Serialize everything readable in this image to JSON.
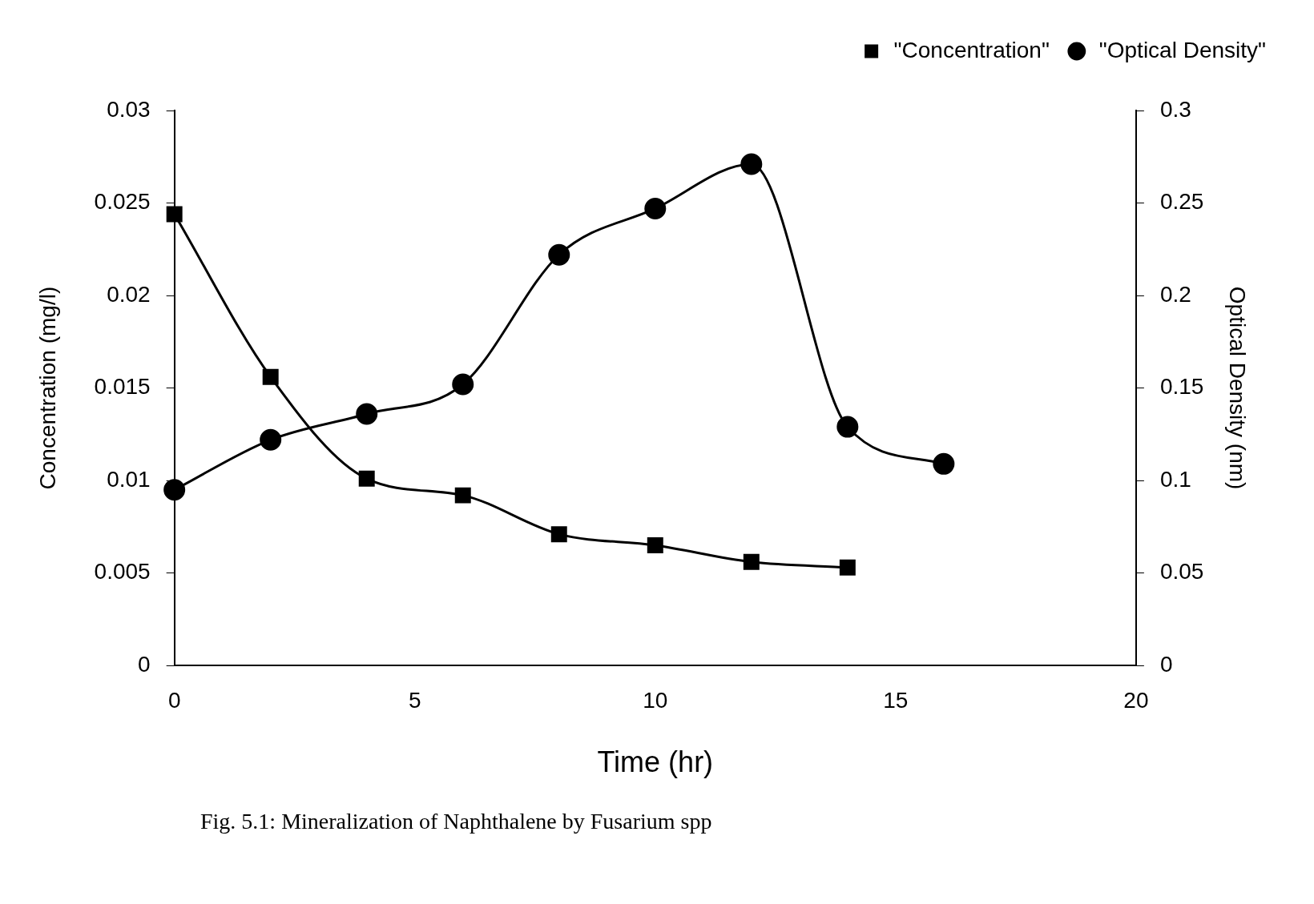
{
  "chart_data": {
    "type": "line",
    "xlabel": "Time (hr)",
    "ylabel": "Concentration (mg/l)",
    "y2label": "Optical Density (nm)",
    "annotations": [
      "Fig. 5.1: Mineralization of Naphthalene by Fusarium spp"
    ],
    "xlim": [
      0,
      20
    ],
    "xticks": [
      0,
      5,
      10,
      15,
      20
    ],
    "ylim": [
      0,
      0.03
    ],
    "yticks": [
      0,
      0.005,
      0.01,
      0.015,
      0.02,
      0.025,
      0.03
    ],
    "y2lim": [
      0,
      0.3
    ],
    "y2ticks": [
      0,
      0.05,
      0.1,
      0.15,
      0.2,
      0.25,
      0.3
    ],
    "grid": false,
    "legend": "top right",
    "line_style": "solid",
    "series": [
      {
        "name": "\"Concentration\"",
        "color": "#000000",
        "marker": "square",
        "x": [
          0,
          2,
          4,
          6,
          8,
          10,
          12,
          14
        ],
        "values": [
          0.0244,
          0.0156,
          0.0101,
          0.0092,
          0.0071,
          0.0065,
          0.0056,
          0.0053
        ]
      },
      {
        "name": "\"Optical Density\"",
        "color": "#000000",
        "marker": "circle",
        "axis": "y2",
        "x": [
          0,
          2,
          4,
          6,
          8,
          10,
          12,
          14,
          16
        ],
        "values": [
          0.095,
          0.122,
          0.136,
          0.152,
          0.222,
          0.247,
          0.271,
          0.129,
          0.109
        ]
      }
    ]
  }
}
